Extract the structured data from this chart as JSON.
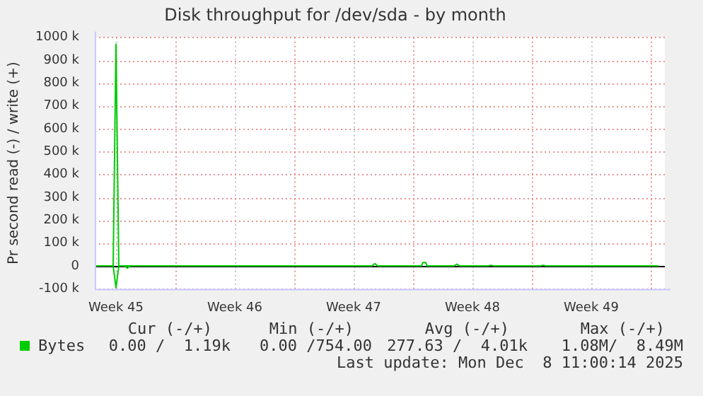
{
  "chart_data": {
    "type": "line",
    "title": "Disk throughput for /dev/sda - by month",
    "ylabel": "Pr second read (-) / write (+)",
    "xlim": [
      "2025-11-05T06:00",
      "2025-12-08T20:00"
    ],
    "xticks": [
      {
        "value": "2025-11-06T12:00",
        "label": "Week 45"
      },
      {
        "value": "2025-11-10T00:00",
        "label": null
      },
      {
        "value": "2025-11-13T12:00",
        "label": "Week 46"
      },
      {
        "value": "2025-11-17T00:00",
        "label": null
      },
      {
        "value": "2025-11-20T12:00",
        "label": "Week 47"
      },
      {
        "value": "2025-11-24T00:00",
        "label": null
      },
      {
        "value": "2025-11-27T12:00",
        "label": "Week 48"
      },
      {
        "value": "2025-12-01T00:00",
        "label": null
      },
      {
        "value": "2025-12-04T12:00",
        "label": "Week 49"
      },
      {
        "value": "2025-12-08T00:00",
        "label": null
      }
    ],
    "ylim": [
      -100000,
      1000000
    ],
    "yticks": [
      {
        "value": -100000,
        "label": "-100 k"
      },
      {
        "value": 0,
        "label": "0"
      },
      {
        "value": 100000,
        "label": "100 k"
      },
      {
        "value": 200000,
        "label": "200 k"
      },
      {
        "value": 300000,
        "label": "300 k"
      },
      {
        "value": 400000,
        "label": "400 k"
      },
      {
        "value": 500000,
        "label": "500 k"
      },
      {
        "value": 600000,
        "label": "600 k"
      },
      {
        "value": 700000,
        "label": "700 k"
      },
      {
        "value": 800000,
        "label": "800 k"
      },
      {
        "value": 900000,
        "label": "900 k"
      },
      {
        "value": 1000000,
        "label": "1000 k"
      }
    ],
    "grid": true,
    "legend": "bottom left",
    "marker": "none",
    "line_style": "solid",
    "ref_lines": [
      {
        "axis": "y",
        "value": 0,
        "color": "#000000"
      }
    ],
    "series": [
      {
        "name": "Bytes",
        "color": "#00cc00",
        "x": [
          "2025-11-05T06:00",
          "2025-11-06T08:00",
          "2025-11-06T12:00",
          "2025-11-06T16:00",
          "2025-11-21T14:00",
          "2025-11-21T18:00",
          "2025-11-21T22:00",
          "2025-11-24T12:00",
          "2025-11-24T14:00",
          "2025-11-24T18:00",
          "2025-11-24T20:00",
          "2025-11-26T10:00",
          "2025-11-26T14:00",
          "2025-11-26T18:00",
          "2025-11-28T10:00",
          "2025-11-28T14:00",
          "2025-11-28T18:00",
          "2025-12-01T12:00",
          "2025-12-01T16:00",
          "2025-12-01T20:00",
          "2025-12-08T11:00"
        ],
        "values": [
          0,
          0,
          970000,
          0,
          0,
          10000,
          0,
          0,
          15000,
          15000,
          0,
          0,
          8000,
          0,
          0,
          3000,
          0,
          0,
          3000,
          0,
          0
        ]
      },
      {
        "color": "#00cc00",
        "x": [
          "2025-11-06T08:00",
          "2025-11-06T12:00",
          "2025-11-06T16:00",
          "2025-11-07T00:00",
          "2025-11-07T04:00",
          "2025-11-07T08:00"
        ],
        "values": [
          0,
          -95000,
          0,
          0,
          -10000,
          0
        ]
      }
    ],
    "annotations": [
      "Cur (-/+)",
      "Min (-/+)",
      "Avg (-/+)",
      "Max (-/+)",
      "0.00 /  1.19k",
      "0.00 /754.00",
      "277.63 /  4.01k",
      "1.08M/  8.49M",
      "Last update: Mon Dec  8 11:00:14 2025"
    ]
  }
}
